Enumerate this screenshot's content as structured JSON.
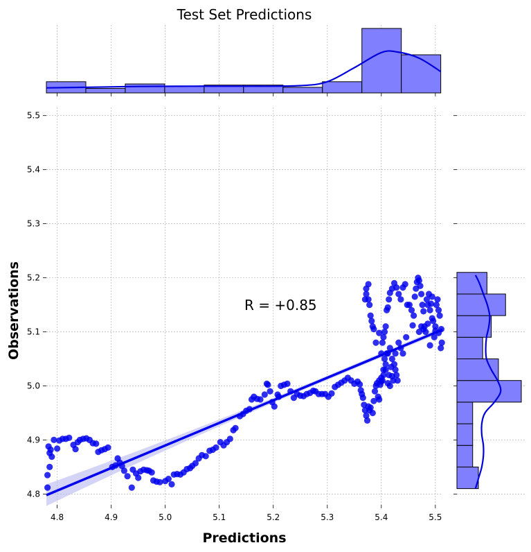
{
  "chart_data": {
    "type": "scatter",
    "title": "Test Set Predictions",
    "xlabel": "Predictions",
    "ylabel": "Observations",
    "annotation": "R = +0.85",
    "xlim": [
      4.78,
      5.513
    ],
    "ylim": [
      4.78,
      5.515
    ],
    "x_ticks": [
      "4.8",
      "4.9",
      "5.0",
      "5.1",
      "5.2",
      "5.3",
      "5.4",
      "5.5"
    ],
    "y_ticks": [
      "4.8",
      "4.9",
      "5.0",
      "5.1",
      "5.2",
      "5.3",
      "5.4",
      "5.5"
    ],
    "grid": true,
    "colors": {
      "points": "#0000ee",
      "fit_line": "#0000ee",
      "ci_band": "#b8b8f0",
      "hist_fill": "#8080ff",
      "kde": "#0000dd"
    },
    "regression": {
      "x": [
        4.78,
        5.513
      ],
      "y": [
        4.798,
        5.104
      ]
    },
    "points": [
      [
        4.782,
        4.835
      ],
      [
        4.782,
        4.812
      ],
      [
        4.784,
        4.888
      ],
      [
        4.786,
        4.876
      ],
      [
        4.786,
        4.85
      ],
      [
        4.788,
        4.882
      ],
      [
        4.79,
        4.869
      ],
      [
        4.794,
        4.9
      ],
      [
        4.8,
        4.884
      ],
      [
        4.804,
        4.899
      ],
      [
        4.81,
        4.902
      ],
      [
        4.816,
        4.902
      ],
      [
        4.822,
        4.904
      ],
      [
        4.83,
        4.891
      ],
      [
        4.834,
        4.883
      ],
      [
        4.838,
        4.896
      ],
      [
        4.842,
        4.9
      ],
      [
        4.848,
        4.902
      ],
      [
        4.854,
        4.903
      ],
      [
        4.86,
        4.9
      ],
      [
        4.866,
        4.894
      ],
      [
        4.872,
        4.893
      ],
      [
        4.876,
        4.878
      ],
      [
        4.882,
        4.881
      ],
      [
        4.888,
        4.883
      ],
      [
        4.894,
        4.886
      ],
      [
        4.902,
        4.85
      ],
      [
        4.908,
        4.853
      ],
      [
        4.912,
        4.866
      ],
      [
        4.916,
        4.858
      ],
      [
        4.92,
        4.852
      ],
      [
        4.924,
        4.843
      ],
      [
        4.93,
        4.833
      ],
      [
        4.938,
        4.812
      ],
      [
        4.94,
        4.845
      ],
      [
        4.946,
        4.838
      ],
      [
        4.95,
        4.83
      ],
      [
        4.954,
        4.842
      ],
      [
        4.96,
        4.845
      ],
      [
        4.966,
        4.844
      ],
      [
        4.97,
        4.843
      ],
      [
        4.975,
        4.84
      ],
      [
        4.978,
        4.825
      ],
      [
        4.984,
        4.823
      ],
      [
        4.99,
        4.822
      ],
      [
        5.0,
        4.824
      ],
      [
        5.006,
        4.828
      ],
      [
        5.012,
        4.818
      ],
      [
        5.016,
        4.836
      ],
      [
        5.022,
        4.837
      ],
      [
        5.028,
        4.836
      ],
      [
        5.034,
        4.84
      ],
      [
        5.04,
        4.846
      ],
      [
        5.046,
        4.848
      ],
      [
        5.05,
        4.852
      ],
      [
        5.056,
        4.857
      ],
      [
        5.062,
        4.866
      ],
      [
        5.068,
        4.872
      ],
      [
        5.075,
        4.87
      ],
      [
        5.082,
        4.88
      ],
      [
        5.088,
        4.882
      ],
      [
        5.094,
        4.886
      ],
      [
        5.102,
        4.896
      ],
      [
        5.108,
        4.89
      ],
      [
        5.114,
        4.896
      ],
      [
        5.12,
        4.902
      ],
      [
        5.126,
        4.918
      ],
      [
        5.13,
        4.922
      ],
      [
        5.138,
        4.944
      ],
      [
        5.144,
        4.948
      ],
      [
        5.15,
        4.954
      ],
      [
        5.156,
        4.957
      ],
      [
        5.16,
        4.975
      ],
      [
        5.164,
        4.98
      ],
      [
        5.17,
        4.976
      ],
      [
        5.176,
        4.975
      ],
      [
        5.184,
        4.984
      ],
      [
        5.188,
        5.004
      ],
      [
        5.19,
        5.002
      ],
      [
        5.194,
        4.99
      ],
      [
        5.198,
        4.97
      ],
      [
        5.202,
        4.962
      ],
      [
        5.208,
        4.984
      ],
      [
        5.21,
        4.98
      ],
      [
        5.214,
        5.0
      ],
      [
        5.22,
        5.002
      ],
      [
        5.226,
        5.004
      ],
      [
        5.232,
        4.99
      ],
      [
        5.238,
        4.978
      ],
      [
        5.244,
        4.985
      ],
      [
        5.25,
        4.982
      ],
      [
        5.256,
        4.981
      ],
      [
        5.262,
        4.985
      ],
      [
        5.268,
        4.987
      ],
      [
        5.274,
        4.991
      ],
      [
        5.278,
        4.99
      ],
      [
        5.284,
        4.985
      ],
      [
        5.29,
        4.985
      ],
      [
        5.296,
        4.985
      ],
      [
        5.302,
        4.98
      ],
      [
        5.308,
        4.986
      ],
      [
        5.314,
        4.998
      ],
      [
        5.32,
        5.002
      ],
      [
        5.326,
        5.006
      ],
      [
        5.332,
        5.01
      ],
      [
        5.338,
        5.015
      ],
      [
        5.344,
        5.01
      ],
      [
        5.35,
        5.004
      ],
      [
        5.356,
        5.008
      ],
      [
        5.36,
        5.003
      ],
      [
        5.362,
        4.992
      ],
      [
        5.364,
        4.985
      ],
      [
        5.366,
        4.978
      ],
      [
        5.368,
        4.965
      ],
      [
        5.37,
        4.955
      ],
      [
        5.372,
        4.945
      ],
      [
        5.374,
        4.936
      ],
      [
        5.376,
        4.962
      ],
      [
        5.378,
        4.955
      ],
      [
        5.38,
        4.96
      ],
      [
        5.384,
        4.95
      ],
      [
        5.386,
        4.972
      ],
      [
        5.388,
        4.99
      ],
      [
        5.39,
        5.0
      ],
      [
        5.392,
        5.005
      ],
      [
        5.394,
        4.98
      ],
      [
        5.396,
        4.975
      ],
      [
        5.398,
        5.002
      ],
      [
        5.4,
        5.008
      ],
      [
        5.402,
        5.01
      ],
      [
        5.404,
        5.03
      ],
      [
        5.406,
        5.05
      ],
      [
        5.408,
        5.03
      ],
      [
        5.41,
        5.06
      ],
      [
        5.412,
        5.005
      ],
      [
        5.414,
        5.02
      ],
      [
        5.416,
        5.0
      ],
      [
        5.418,
        5.035
      ],
      [
        5.42,
        5.018
      ],
      [
        5.422,
        5.01
      ],
      [
        5.424,
        5.04
      ],
      [
        5.426,
        5.03
      ],
      [
        5.428,
        5.02
      ],
      [
        5.43,
        5.01
      ],
      [
        5.37,
        5.16
      ],
      [
        5.372,
        5.17
      ],
      [
        5.376,
        5.16
      ],
      [
        5.378,
        5.15
      ],
      [
        5.38,
        5.13
      ],
      [
        5.382,
        5.12
      ],
      [
        5.384,
        5.11
      ],
      [
        5.386,
        5.105
      ],
      [
        5.372,
        5.18
      ],
      [
        5.376,
        5.188
      ],
      [
        5.39,
        5.08
      ],
      [
        5.396,
        5.098
      ],
      [
        5.4,
        5.06
      ],
      [
        5.402,
        5.08
      ],
      [
        5.404,
        5.09
      ],
      [
        5.406,
        5.1
      ],
      [
        5.408,
        5.11
      ],
      [
        5.41,
        5.14
      ],
      [
        5.412,
        5.145
      ],
      [
        5.414,
        5.16
      ],
      [
        5.416,
        5.172
      ],
      [
        5.42,
        5.18
      ],
      [
        5.424,
        5.19
      ],
      [
        5.428,
        5.182
      ],
      [
        5.432,
        5.17
      ],
      [
        5.436,
        5.16
      ],
      [
        5.44,
        5.182
      ],
      [
        5.444,
        5.188
      ],
      [
        5.448,
        5.15
      ],
      [
        5.452,
        5.15
      ],
      [
        5.456,
        5.14
      ],
      [
        5.458,
        5.112
      ],
      [
        5.46,
        5.13
      ],
      [
        5.462,
        5.165
      ],
      [
        5.464,
        5.18
      ],
      [
        5.466,
        5.192
      ],
      [
        5.468,
        5.2
      ],
      [
        5.47,
        5.195
      ],
      [
        5.472,
        5.185
      ],
      [
        5.474,
        5.17
      ],
      [
        5.476,
        5.15
      ],
      [
        5.478,
        5.138
      ],
      [
        5.48,
        5.11
      ],
      [
        5.482,
        5.1
      ],
      [
        5.484,
        5.16
      ],
      [
        5.486,
        5.15
      ],
      [
        5.488,
        5.17
      ],
      [
        5.49,
        5.14
      ],
      [
        5.492,
        5.152
      ],
      [
        5.494,
        5.165
      ],
      [
        5.496,
        5.12
      ],
      [
        5.498,
        5.09
      ],
      [
        5.5,
        5.11
      ],
      [
        5.502,
        5.15
      ],
      [
        5.504,
        5.16
      ],
      [
        5.506,
        5.14
      ],
      [
        5.508,
        5.13
      ],
      [
        5.51,
        5.07
      ],
      [
        5.512,
        5.08
      ],
      [
        5.49,
        5.075
      ],
      [
        5.44,
        5.06
      ],
      [
        5.446,
        5.09
      ],
      [
        5.436,
        5.07
      ],
      [
        5.432,
        5.08
      ],
      [
        5.426,
        5.06
      ],
      [
        5.42,
        5.05
      ],
      [
        5.416,
        5.07
      ],
      [
        5.412,
        5.06
      ],
      [
        5.408,
        5.04
      ],
      [
        5.404,
        5.02
      ],
      [
        5.4,
        5.015
      ],
      [
        5.396,
        5.01
      ],
      [
        5.47,
        5.1
      ],
      [
        5.474,
        5.11
      ],
      [
        5.478,
        5.105
      ],
      [
        5.486,
        5.115
      ],
      [
        5.494,
        5.125
      ],
      [
        5.5,
        5.102
      ],
      [
        5.506,
        5.098
      ],
      [
        5.511,
        5.105
      ]
    ],
    "hist_x": {
      "edges": [
        4.78,
        4.853,
        4.926,
        4.999,
        5.072,
        5.145,
        5.218,
        5.291,
        5.364,
        5.437,
        5.51
      ],
      "counts": [
        2.0,
        0.8,
        1.6,
        1.2,
        1.4,
        1.4,
        1.0,
        2.0,
        11.5,
        6.8
      ]
    },
    "hist_y": {
      "edges": [
        4.81,
        4.85,
        4.89,
        4.93,
        4.97,
        5.01,
        5.05,
        5.09,
        5.13,
        5.17,
        5.21
      ],
      "counts": [
        15,
        11,
        11,
        11,
        45,
        29,
        18,
        24,
        34,
        21
      ]
    },
    "kde_x": [
      [
        4.78,
        0.9
      ],
      [
        4.85,
        1.0
      ],
      [
        4.95,
        1.15
      ],
      [
        5.05,
        1.2
      ],
      [
        5.15,
        1.2
      ],
      [
        5.25,
        1.3
      ],
      [
        5.3,
        2.0
      ],
      [
        5.35,
        4.5
      ],
      [
        5.4,
        7.2
      ],
      [
        5.43,
        7.3
      ],
      [
        5.47,
        6.2
      ],
      [
        5.51,
        3.8
      ]
    ],
    "kde_y": [
      [
        4.81,
        6
      ],
      [
        4.83,
        10
      ],
      [
        4.85,
        14
      ],
      [
        4.87,
        16
      ],
      [
        4.89,
        16
      ],
      [
        4.91,
        14
      ],
      [
        4.93,
        14
      ],
      [
        4.95,
        18
      ],
      [
        4.97,
        30
      ],
      [
        4.99,
        38
      ],
      [
        5.01,
        34
      ],
      [
        5.03,
        26
      ],
      [
        5.05,
        20
      ],
      [
        5.07,
        19
      ],
      [
        5.09,
        20
      ],
      [
        5.11,
        23
      ],
      [
        5.13,
        24
      ],
      [
        5.15,
        21
      ],
      [
        5.17,
        16
      ],
      [
        5.19,
        11
      ],
      [
        5.205,
        6
      ]
    ]
  }
}
